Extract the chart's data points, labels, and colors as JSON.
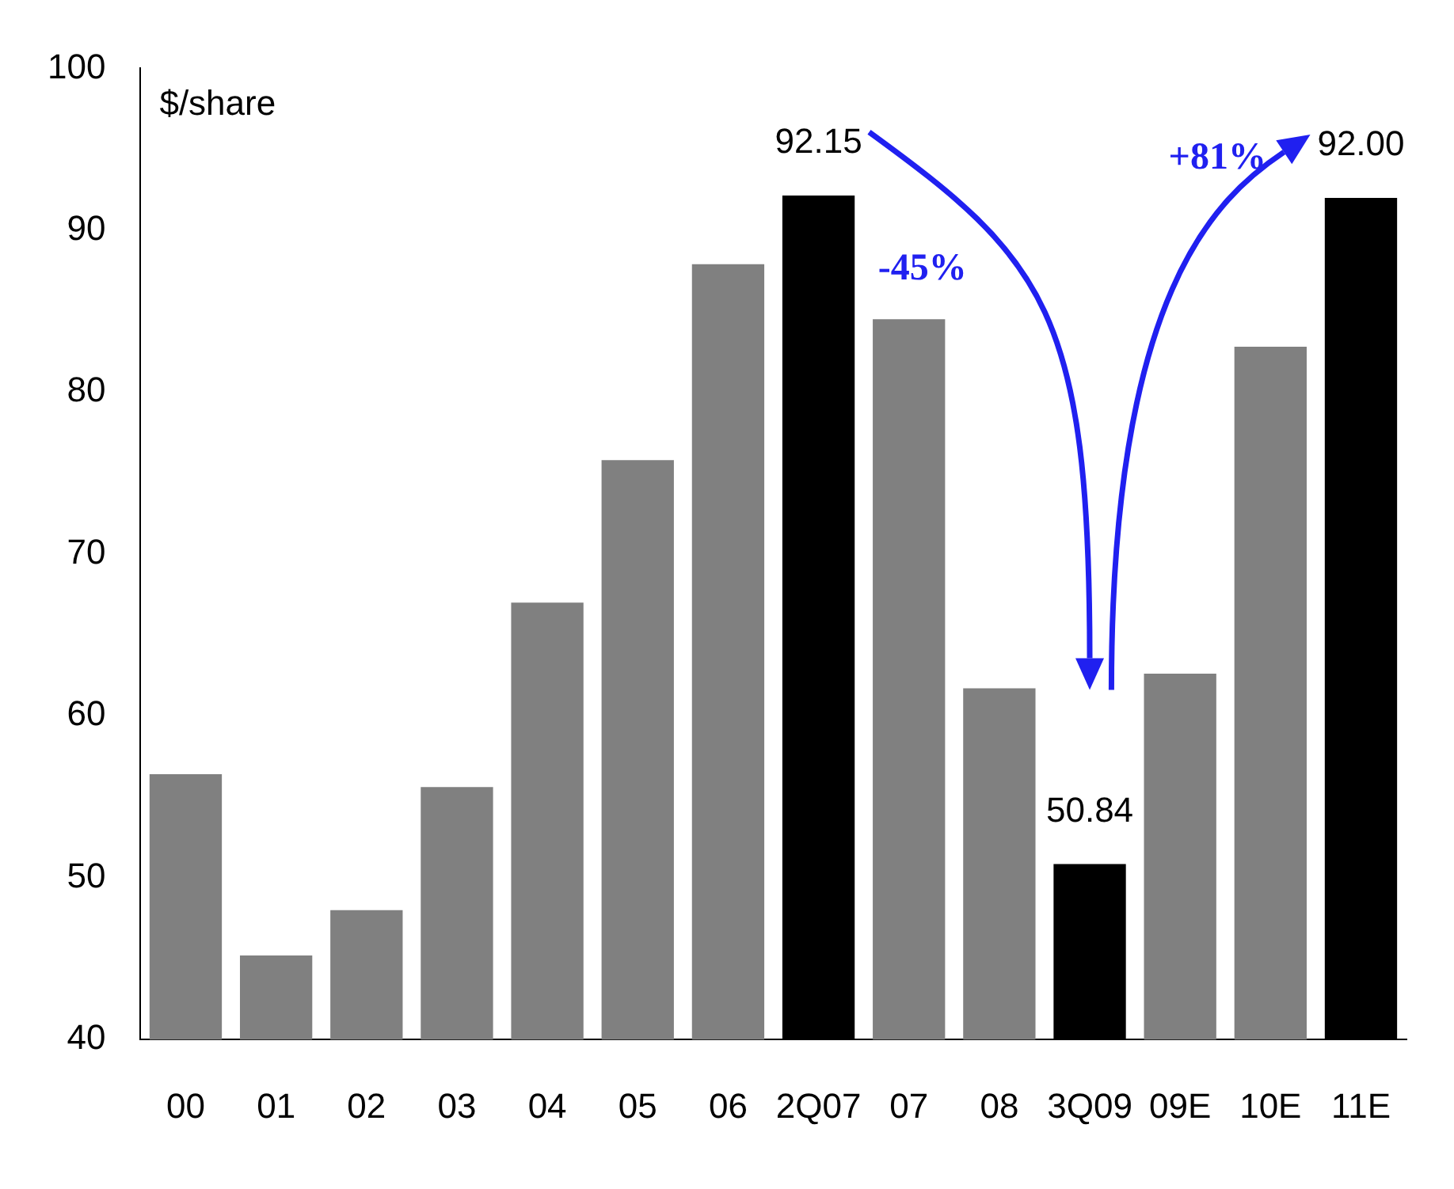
{
  "chart_data": {
    "type": "bar",
    "ylabel": "$/share",
    "categories": [
      "00",
      "01",
      "02",
      "03",
      "04",
      "05",
      "06",
      "2Q07",
      "07",
      "08",
      "3Q09",
      "09E",
      "10E",
      "11E"
    ],
    "values": [
      56.4,
      45.2,
      48.0,
      55.6,
      67.0,
      75.8,
      87.9,
      92.15,
      84.5,
      61.7,
      50.84,
      62.6,
      82.8,
      92.0
    ],
    "colors": [
      "#808080",
      "#808080",
      "#808080",
      "#808080",
      "#808080",
      "#808080",
      "#808080",
      "#000000",
      "#808080",
      "#808080",
      "#000000",
      "#808080",
      "#808080",
      "#000000"
    ],
    "value_labels": [
      null,
      null,
      null,
      null,
      null,
      null,
      null,
      "92.15",
      null,
      null,
      "50.84",
      null,
      null,
      "92.00"
    ],
    "annotations": [
      "-45%",
      "+81%"
    ],
    "ylim": [
      40,
      100
    ],
    "yticks": [
      40,
      50,
      60,
      70,
      80,
      90,
      100
    ],
    "grid": false,
    "legend": false
  }
}
